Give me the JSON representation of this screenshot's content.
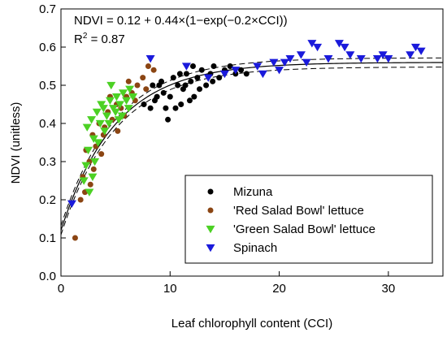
{
  "chart_data": {
    "type": "scatter",
    "xlabel": "Leaf chlorophyll content (CCI)",
    "ylabel": "NDVI (unitless)",
    "xlim": [
      0,
      35
    ],
    "ylim": [
      0,
      0.7
    ],
    "xticks": [
      "0",
      "10",
      "20",
      "30"
    ],
    "xtick_values": [
      0,
      10,
      20,
      30
    ],
    "yticks": [
      "0.0",
      "0.1",
      "0.2",
      "0.3",
      "0.4",
      "0.5",
      "0.6",
      "0.7"
    ],
    "ytick_values": [
      0,
      0.1,
      0.2,
      0.3,
      0.4,
      0.5,
      0.6,
      0.7
    ],
    "equation": "NDVI = 0.12 + 0.44×(1−exp(−0.2×CCI))",
    "r2_label": "R",
    "r2_sup": "2",
    "r2_value": " = 0.87",
    "legend_position": "bottom-right",
    "fit": {
      "a": 0.12,
      "b": 0.44,
      "k": 0.2,
      "ci_offset": 0.012
    },
    "series": [
      {
        "name": "Mizuna",
        "marker": "circle",
        "color": "#000000",
        "points": [
          [
            8.2,
            0.44
          ],
          [
            8.6,
            0.46
          ],
          [
            9.0,
            0.5
          ],
          [
            9.4,
            0.48
          ],
          [
            9.6,
            0.44
          ],
          [
            10.0,
            0.47
          ],
          [
            10.3,
            0.52
          ],
          [
            10.7,
            0.5
          ],
          [
            11.0,
            0.45
          ],
          [
            11.2,
            0.49
          ],
          [
            11.5,
            0.53
          ],
          [
            11.9,
            0.51
          ],
          [
            12.2,
            0.47
          ],
          [
            12.5,
            0.52
          ],
          [
            12.9,
            0.54
          ],
          [
            13.3,
            0.5
          ],
          [
            13.7,
            0.53
          ],
          [
            14.0,
            0.55
          ],
          [
            14.5,
            0.52
          ],
          [
            15.0,
            0.54
          ],
          [
            15.5,
            0.55
          ],
          [
            16.0,
            0.53
          ],
          [
            16.5,
            0.54
          ],
          [
            17.0,
            0.53
          ],
          [
            9.8,
            0.41
          ],
          [
            10.5,
            0.44
          ],
          [
            11.8,
            0.46
          ],
          [
            8.8,
            0.47
          ],
          [
            12.7,
            0.49
          ],
          [
            13.9,
            0.51
          ],
          [
            9.2,
            0.51
          ],
          [
            10.9,
            0.53
          ],
          [
            8.4,
            0.5
          ],
          [
            7.6,
            0.45
          ],
          [
            11.4,
            0.5
          ],
          [
            12.1,
            0.55
          ]
        ]
      },
      {
        "name": "'Red Salad Bowl' lettuce",
        "marker": "circle",
        "color": "#8b4513",
        "points": [
          [
            1.3,
            0.1
          ],
          [
            1.8,
            0.2
          ],
          [
            2.0,
            0.26
          ],
          [
            2.3,
            0.33
          ],
          [
            2.6,
            0.3
          ],
          [
            2.9,
            0.37
          ],
          [
            3.2,
            0.34
          ],
          [
            3.5,
            0.4
          ],
          [
            3.9,
            0.37
          ],
          [
            4.3,
            0.43
          ],
          [
            4.7,
            0.41
          ],
          [
            5.1,
            0.45
          ],
          [
            5.5,
            0.44
          ],
          [
            6.0,
            0.47
          ],
          [
            6.5,
            0.48
          ],
          [
            7.0,
            0.5
          ],
          [
            7.5,
            0.52
          ],
          [
            8.0,
            0.55
          ],
          [
            8.5,
            0.54
          ],
          [
            2.2,
            0.22
          ],
          [
            3.0,
            0.28
          ],
          [
            4.0,
            0.39
          ],
          [
            5.8,
            0.42
          ],
          [
            6.8,
            0.46
          ],
          [
            4.5,
            0.47
          ],
          [
            3.7,
            0.32
          ],
          [
            6.2,
            0.51
          ],
          [
            7.8,
            0.49
          ],
          [
            5.2,
            0.38
          ],
          [
            2.7,
            0.24
          ]
        ]
      },
      {
        "name": "'Green Salad Bowl' lettuce",
        "marker": "triangle",
        "color": "#4cd124",
        "points": [
          [
            2.4,
            0.39
          ],
          [
            2.8,
            0.41
          ],
          [
            3.0,
            0.36
          ],
          [
            3.3,
            0.43
          ],
          [
            3.6,
            0.4
          ],
          [
            3.9,
            0.44
          ],
          [
            4.2,
            0.42
          ],
          [
            4.5,
            0.46
          ],
          [
            4.8,
            0.44
          ],
          [
            5.1,
            0.47
          ],
          [
            5.4,
            0.45
          ],
          [
            5.7,
            0.48
          ],
          [
            6.0,
            0.46
          ],
          [
            6.3,
            0.49
          ],
          [
            6.6,
            0.47
          ],
          [
            2.5,
            0.33
          ],
          [
            3.1,
            0.3
          ],
          [
            2.9,
            0.26
          ],
          [
            3.4,
            0.35
          ],
          [
            4.0,
            0.38
          ],
          [
            4.4,
            0.4
          ],
          [
            5.0,
            0.43
          ],
          [
            5.6,
            0.42
          ],
          [
            6.2,
            0.44
          ],
          [
            2.6,
            0.22
          ],
          [
            2.1,
            0.25
          ],
          [
            3.7,
            0.45
          ],
          [
            4.6,
            0.5
          ],
          [
            5.3,
            0.41
          ],
          [
            2.3,
            0.29
          ]
        ]
      },
      {
        "name": "Spinach",
        "marker": "triangle",
        "color": "#1a1adb",
        "points": [
          [
            1.0,
            0.19
          ],
          [
            8.2,
            0.57
          ],
          [
            11.5,
            0.55
          ],
          [
            13.5,
            0.52
          ],
          [
            15.0,
            0.53
          ],
          [
            16.0,
            0.54
          ],
          [
            18.0,
            0.55
          ],
          [
            19.5,
            0.56
          ],
          [
            20.0,
            0.54
          ],
          [
            21.0,
            0.57
          ],
          [
            22.0,
            0.58
          ],
          [
            22.5,
            0.56
          ],
          [
            23.5,
            0.6
          ],
          [
            24.5,
            0.57
          ],
          [
            25.5,
            0.61
          ],
          [
            26.5,
            0.58
          ],
          [
            27.5,
            0.57
          ],
          [
            29.0,
            0.57
          ],
          [
            29.5,
            0.58
          ],
          [
            30.0,
            0.57
          ],
          [
            32.0,
            0.58
          ],
          [
            32.5,
            0.6
          ],
          [
            33.0,
            0.59
          ],
          [
            23.0,
            0.61
          ],
          [
            18.5,
            0.53
          ],
          [
            26.0,
            0.6
          ],
          [
            20.5,
            0.56
          ]
        ]
      }
    ]
  }
}
